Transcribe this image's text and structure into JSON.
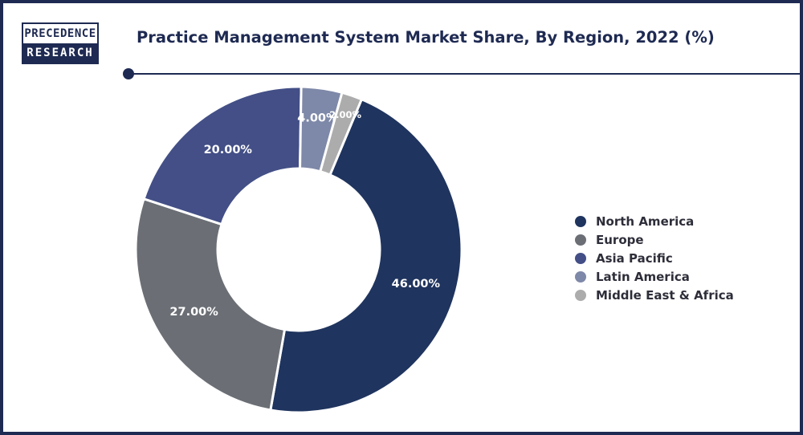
{
  "brand": {
    "line1": "PRECEDENCE",
    "line2": "RESEARCH"
  },
  "header": {
    "title": "Practice Management System Market Share, By Region, 2022 (%)"
  },
  "chart_data": {
    "type": "pie",
    "variant": "donut",
    "title": "Practice Management System Market Share, By Region, 2022 (%)",
    "categories": [
      "North America",
      "Europe",
      "Asia Pacific",
      "Latin America",
      "Middle East & Africa"
    ],
    "values": [
      46,
      27,
      20,
      4,
      2
    ],
    "value_labels": [
      "46.00%",
      "27.00%",
      "20.00%",
      "4.00%",
      "2.00%"
    ],
    "colors": [
      "#1f345e",
      "#6b6f75",
      "#434f86",
      "#7e88a8",
      "#acacac"
    ],
    "legend_position": "right"
  }
}
